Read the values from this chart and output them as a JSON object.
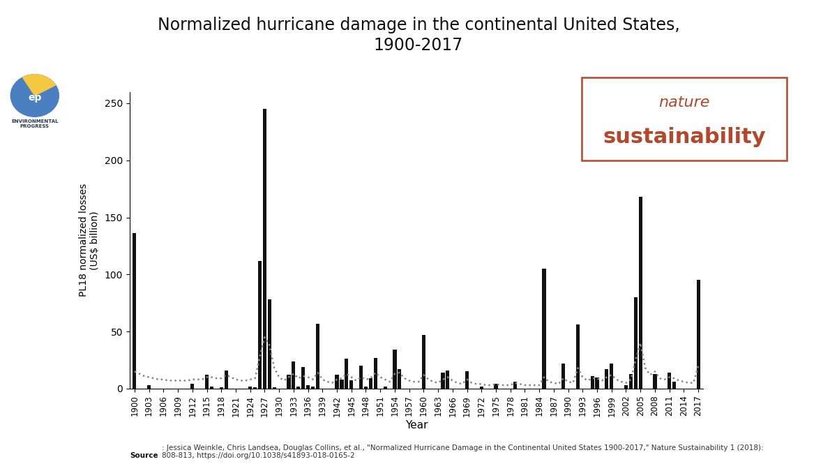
{
  "title": "Normalized hurricane damage in the continental United States,\n1900-2017",
  "xlabel": "Year",
  "ylabel": "PL18 normalized losses\n(US$ billion)",
  "background_color": "#ffffff",
  "bar_color": "#111111",
  "years": [
    1900,
    1901,
    1902,
    1903,
    1904,
    1905,
    1906,
    1907,
    1908,
    1909,
    1910,
    1911,
    1912,
    1913,
    1914,
    1915,
    1916,
    1917,
    1918,
    1919,
    1920,
    1921,
    1922,
    1923,
    1924,
    1925,
    1926,
    1927,
    1928,
    1929,
    1930,
    1931,
    1932,
    1933,
    1934,
    1935,
    1936,
    1937,
    1938,
    1939,
    1940,
    1941,
    1942,
    1943,
    1944,
    1945,
    1946,
    1947,
    1948,
    1949,
    1950,
    1951,
    1952,
    1953,
    1954,
    1955,
    1956,
    1957,
    1958,
    1959,
    1960,
    1961,
    1962,
    1963,
    1964,
    1965,
    1966,
    1967,
    1968,
    1969,
    1970,
    1971,
    1972,
    1973,
    1974,
    1975,
    1976,
    1977,
    1978,
    1979,
    1980,
    1981,
    1982,
    1983,
    1984,
    1985,
    1986,
    1987,
    1988,
    1989,
    1990,
    1991,
    1992,
    1993,
    1994,
    1995,
    1996,
    1997,
    1998,
    1999,
    2000,
    2001,
    2002,
    2003,
    2004,
    2005,
    2006,
    2007,
    2008,
    2009,
    2010,
    2011,
    2012,
    2013,
    2014,
    2015,
    2016,
    2017
  ],
  "values": [
    136,
    0,
    0,
    3,
    0,
    0,
    0,
    0,
    0,
    0,
    0,
    0,
    4,
    0,
    0,
    12,
    2,
    0,
    1,
    16,
    0,
    0,
    0,
    0,
    2,
    1,
    112,
    245,
    78,
    1,
    0,
    0,
    12,
    24,
    2,
    19,
    3,
    2,
    57,
    0,
    0,
    0,
    12,
    8,
    26,
    7,
    0,
    20,
    2,
    9,
    27,
    0,
    2,
    0,
    34,
    17,
    0,
    0,
    0,
    0,
    47,
    0,
    0,
    0,
    14,
    16,
    0,
    0,
    0,
    15,
    0,
    0,
    2,
    0,
    0,
    4,
    0,
    0,
    0,
    6,
    0,
    0,
    0,
    0,
    0,
    105,
    0,
    0,
    0,
    22,
    0,
    0,
    56,
    0,
    0,
    11,
    10,
    0,
    17,
    22,
    0,
    0,
    3,
    13,
    80,
    168,
    0,
    0,
    13,
    0,
    0,
    14,
    6,
    0,
    0,
    0,
    0,
    95
  ],
  "trend_years": [
    1900,
    1901,
    1902,
    1903,
    1904,
    1905,
    1906,
    1907,
    1908,
    1909,
    1910,
    1911,
    1912,
    1913,
    1914,
    1915,
    1916,
    1917,
    1918,
    1919,
    1920,
    1921,
    1922,
    1923,
    1924,
    1925,
    1926,
    1927,
    1928,
    1929,
    1930,
    1931,
    1932,
    1933,
    1934,
    1935,
    1936,
    1937,
    1938,
    1939,
    1940,
    1941,
    1942,
    1943,
    1944,
    1945,
    1946,
    1947,
    1948,
    1949,
    1950,
    1951,
    1952,
    1953,
    1954,
    1955,
    1956,
    1957,
    1958,
    1959,
    1960,
    1961,
    1962,
    1963,
    1964,
    1965,
    1966,
    1967,
    1968,
    1969,
    1970,
    1971,
    1972,
    1973,
    1974,
    1975,
    1976,
    1977,
    1978,
    1979,
    1980,
    1981,
    1982,
    1983,
    1984,
    1985,
    1986,
    1987,
    1988,
    1989,
    1990,
    1991,
    1992,
    1993,
    1994,
    1995,
    1996,
    1997,
    1998,
    1999,
    2000,
    2001,
    2002,
    2003,
    2004,
    2005,
    2006,
    2007,
    2008,
    2009,
    2010,
    2011,
    2012,
    2013,
    2014,
    2015,
    2016,
    2017
  ],
  "trend_values": [
    15,
    13,
    11,
    10,
    9,
    8,
    8,
    7,
    7,
    7,
    7,
    7,
    8,
    8,
    8,
    10,
    10,
    9,
    9,
    12,
    10,
    8,
    7,
    7,
    8,
    9,
    28,
    45,
    38,
    18,
    10,
    7,
    10,
    13,
    9,
    11,
    10,
    8,
    14,
    8,
    6,
    5,
    8,
    9,
    13,
    10,
    7,
    10,
    8,
    9,
    14,
    10,
    8,
    6,
    13,
    14,
    9,
    7,
    6,
    6,
    12,
    8,
    6,
    5,
    8,
    10,
    7,
    5,
    4,
    8,
    5,
    4,
    4,
    3,
    3,
    4,
    3,
    3,
    3,
    5,
    4,
    3,
    3,
    3,
    3,
    10,
    6,
    5,
    4,
    9,
    6,
    5,
    18,
    10,
    7,
    9,
    9,
    7,
    10,
    12,
    8,
    6,
    5,
    8,
    25,
    40,
    18,
    12,
    15,
    9,
    8,
    10,
    9,
    7,
    6,
    5,
    5,
    20
  ],
  "source_text_bold": "Source",
  "source_text_rest": ": Jessica Weinkle, Chris Landsea, Douglas Collins, et al., \"Normalized Hurricane Damage in the Continental United States 1900-2017,\" Nature Sustainability 1 (2018):\n808-813, https://doi.org/10.1038/s41893-018-0165-2",
  "nature_text_line1": "nature",
  "nature_text_line2": "sustainability",
  "nature_color": "#b5472a",
  "nature_box_color": "#b5472a",
  "yticks": [
    0,
    50,
    100,
    150,
    200,
    250
  ],
  "xtick_years": [
    1900,
    1903,
    1906,
    1909,
    1912,
    1915,
    1918,
    1921,
    1924,
    1927,
    1930,
    1933,
    1936,
    1939,
    1942,
    1945,
    1948,
    1951,
    1954,
    1957,
    1960,
    1963,
    1966,
    1969,
    1972,
    1975,
    1978,
    1981,
    1984,
    1987,
    1990,
    1993,
    1996,
    1999,
    2002,
    2005,
    2008,
    2011,
    2014,
    2017
  ],
  "ep_circle_color": "#4a7fc1",
  "ep_yellow_color": "#f5c842",
  "env_progress_color": "#2a3a5a"
}
